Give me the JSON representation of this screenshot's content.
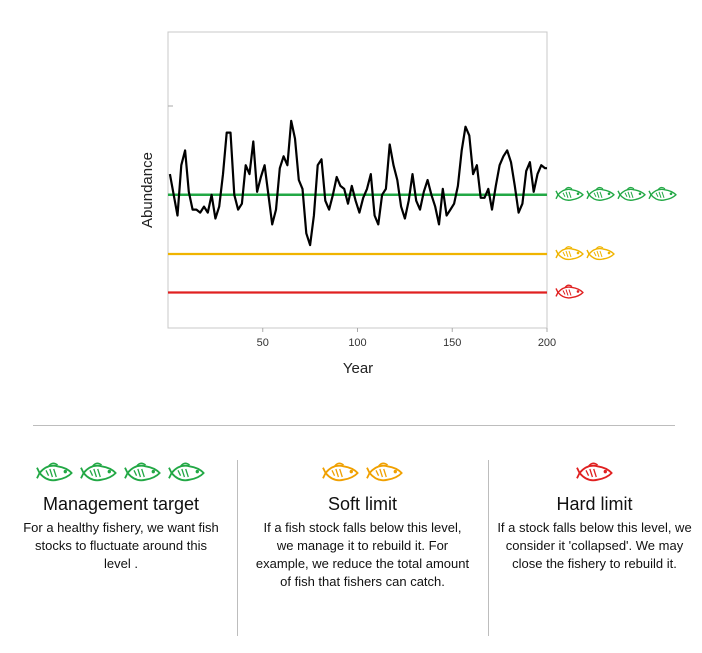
{
  "chart_data": {
    "type": "line",
    "xlabel": "Year",
    "ylabel": "Abundance",
    "xlim": [
      0,
      200
    ],
    "x_ticks": [
      50,
      100,
      150,
      200
    ],
    "series": [
      {
        "x": [
          1,
          3,
          5,
          7,
          9,
          11,
          13,
          15,
          17,
          19,
          21,
          23,
          25,
          27,
          29,
          31,
          33,
          35,
          37,
          39,
          41,
          43,
          45,
          47,
          49,
          51,
          53,
          55,
          57,
          59,
          61,
          63,
          65,
          67,
          69,
          71,
          73,
          75,
          77,
          79,
          81,
          83,
          85,
          87,
          89,
          91,
          93,
          95,
          97,
          99,
          101,
          103,
          105,
          107,
          109,
          111,
          113,
          115,
          117,
          119,
          121,
          123,
          125,
          127,
          129,
          131,
          133,
          135,
          137,
          139,
          141,
          143,
          145,
          147,
          149,
          151,
          153,
          155,
          157,
          159,
          161,
          163,
          165,
          167,
          169,
          171,
          173,
          175,
          177,
          179,
          181,
          183,
          185,
          187,
          189,
          191,
          193,
          195,
          197,
          199,
          200
        ],
        "values": [
          0.52,
          0.45,
          0.38,
          0.55,
          0.6,
          0.46,
          0.4,
          0.4,
          0.39,
          0.41,
          0.39,
          0.45,
          0.37,
          0.41,
          0.52,
          0.66,
          0.66,
          0.45,
          0.4,
          0.42,
          0.55,
          0.52,
          0.63,
          0.46,
          0.51,
          0.55,
          0.45,
          0.35,
          0.4,
          0.54,
          0.58,
          0.55,
          0.7,
          0.64,
          0.5,
          0.47,
          0.32,
          0.28,
          0.38,
          0.55,
          0.57,
          0.43,
          0.4,
          0.45,
          0.51,
          0.48,
          0.47,
          0.42,
          0.48,
          0.43,
          0.39,
          0.44,
          0.47,
          0.52,
          0.38,
          0.35,
          0.45,
          0.47,
          0.62,
          0.55,
          0.5,
          0.41,
          0.37,
          0.43,
          0.52,
          0.43,
          0.4,
          0.46,
          0.5,
          0.45,
          0.41,
          0.35,
          0.47,
          0.38,
          0.4,
          0.42,
          0.48,
          0.6,
          0.68,
          0.65,
          0.52,
          0.55,
          0.44,
          0.44,
          0.47,
          0.4,
          0.48,
          0.55,
          0.58,
          0.6,
          0.56,
          0.48,
          0.39,
          0.42,
          0.53,
          0.56,
          0.46,
          0.52,
          0.55,
          0.54,
          0.54
        ]
      }
    ],
    "reference_lines": [
      {
        "name": "Management target",
        "value": 0.45,
        "color": "#22a845",
        "fish_count": 4
      },
      {
        "name": "Soft limit",
        "value": 0.25,
        "color": "#f0b400",
        "fish_count": 2
      },
      {
        "name": "Hard limit",
        "value": 0.12,
        "color": "#e02020",
        "fish_count": 1
      }
    ],
    "line_color": "#000000",
    "grid": false
  },
  "panels": [
    {
      "title": "Management target",
      "text": "For a healthy fishery, we want fish stocks to fluctuate around this level .",
      "color": "#22a845",
      "fish_count": 4
    },
    {
      "title": "Soft limit",
      "text": "If a fish stock falls below this level, we manage it to rebuild it. For example, we reduce the total amount of fish that fishers can catch.",
      "color": "#f0a000",
      "fish_count": 2
    },
    {
      "title": "Hard limit",
      "text": "If a stock falls below this level, we consider it 'collapsed'. We may close the fishery to rebuild it.",
      "color": "#e02020",
      "fish_count": 1
    }
  ],
  "icons": {
    "fish": "fish-icon"
  }
}
